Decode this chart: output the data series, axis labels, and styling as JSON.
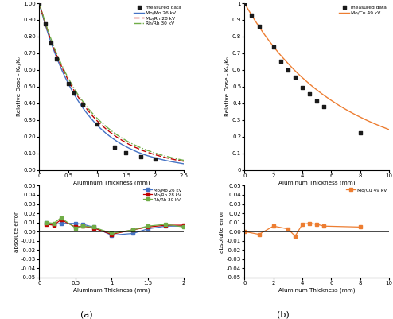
{
  "panel_a_top": {
    "sim_x": [
      0,
      0.05,
      0.1,
      0.15,
      0.2,
      0.25,
      0.3,
      0.35,
      0.4,
      0.45,
      0.5,
      0.55,
      0.6,
      0.65,
      0.7,
      0.75,
      0.8,
      0.85,
      0.9,
      0.95,
      1.0,
      1.05,
      1.1,
      1.15,
      1.2,
      1.25,
      1.3,
      1.35,
      1.4,
      1.45,
      1.5,
      1.55,
      1.6,
      1.65,
      1.7,
      1.75,
      1.8,
      1.85,
      1.9,
      1.95,
      2.0,
      2.1,
      2.2,
      2.3,
      2.4,
      2.5
    ],
    "mo_mo_26": [
      1.0,
      0.935,
      0.875,
      0.82,
      0.768,
      0.72,
      0.674,
      0.632,
      0.592,
      0.555,
      0.52,
      0.487,
      0.456,
      0.427,
      0.4,
      0.375,
      0.351,
      0.329,
      0.308,
      0.288,
      0.27,
      0.253,
      0.237,
      0.222,
      0.208,
      0.195,
      0.183,
      0.171,
      0.16,
      0.15,
      0.141,
      0.132,
      0.124,
      0.116,
      0.108,
      0.102,
      0.095,
      0.089,
      0.084,
      0.079,
      0.074,
      0.065,
      0.057,
      0.05,
      0.044,
      0.038
    ],
    "mo_rh_28": [
      1.0,
      0.94,
      0.883,
      0.83,
      0.779,
      0.733,
      0.689,
      0.648,
      0.61,
      0.574,
      0.54,
      0.508,
      0.478,
      0.45,
      0.424,
      0.399,
      0.376,
      0.354,
      0.333,
      0.314,
      0.296,
      0.279,
      0.263,
      0.248,
      0.234,
      0.221,
      0.208,
      0.196,
      0.185,
      0.175,
      0.165,
      0.155,
      0.147,
      0.138,
      0.131,
      0.123,
      0.116,
      0.11,
      0.104,
      0.098,
      0.093,
      0.083,
      0.074,
      0.066,
      0.059,
      0.053
    ],
    "rh_rh_30": [
      1.0,
      0.943,
      0.888,
      0.836,
      0.788,
      0.742,
      0.699,
      0.659,
      0.621,
      0.585,
      0.552,
      0.521,
      0.491,
      0.463,
      0.437,
      0.413,
      0.39,
      0.368,
      0.348,
      0.329,
      0.311,
      0.294,
      0.278,
      0.263,
      0.249,
      0.235,
      0.222,
      0.21,
      0.199,
      0.188,
      0.178,
      0.168,
      0.159,
      0.151,
      0.143,
      0.135,
      0.128,
      0.121,
      0.115,
      0.109,
      0.103,
      0.092,
      0.083,
      0.074,
      0.066,
      0.059
    ],
    "meas_x": [
      0.0,
      0.1,
      0.2,
      0.3,
      0.5,
      0.6,
      0.75,
      1.0,
      1.3,
      1.5,
      1.75,
      2.0
    ],
    "meas_vals": [
      1.0,
      0.875,
      0.762,
      0.665,
      0.52,
      0.46,
      0.393,
      0.278,
      0.14,
      0.105,
      0.082,
      0.068
    ]
  },
  "panel_b_top": {
    "sim_x": [
      0,
      0.25,
      0.5,
      0.75,
      1.0,
      1.25,
      1.5,
      1.75,
      2.0,
      2.25,
      2.5,
      2.75,
      3.0,
      3.25,
      3.5,
      3.75,
      4.0,
      4.25,
      4.5,
      4.75,
      5.0,
      5.25,
      5.5,
      5.75,
      6.0,
      6.25,
      6.5,
      6.75,
      7.0,
      7.25,
      7.5,
      7.75,
      8.0,
      8.5,
      9.0,
      9.5,
      10.0
    ],
    "mo_cu_49": [
      1.0,
      0.963,
      0.927,
      0.893,
      0.86,
      0.828,
      0.798,
      0.769,
      0.741,
      0.714,
      0.688,
      0.664,
      0.64,
      0.617,
      0.595,
      0.574,
      0.554,
      0.535,
      0.516,
      0.498,
      0.481,
      0.464,
      0.448,
      0.433,
      0.418,
      0.404,
      0.39,
      0.377,
      0.364,
      0.352,
      0.34,
      0.329,
      0.318,
      0.297,
      0.278,
      0.26,
      0.243
    ],
    "meas_x": [
      0.0,
      0.5,
      1.0,
      2.0,
      2.5,
      3.0,
      3.5,
      4.0,
      4.5,
      5.0,
      5.5,
      8.0
    ],
    "meas_vals": [
      1.0,
      0.93,
      0.862,
      0.738,
      0.653,
      0.602,
      0.558,
      0.497,
      0.456,
      0.415,
      0.383,
      0.225
    ]
  },
  "panel_a_bot": {
    "x": [
      0.1,
      0.2,
      0.3,
      0.5,
      0.6,
      0.75,
      1.0,
      1.3,
      1.5,
      1.75,
      2.0
    ],
    "err_mo_mo": [
      0.01,
      0.008,
      0.009,
      0.009,
      0.008,
      0.005,
      -0.004,
      -0.002,
      0.003,
      0.006,
      0.006
    ],
    "err_mo_rh": [
      0.008,
      0.007,
      0.013,
      0.005,
      0.006,
      0.004,
      -0.003,
      0.002,
      0.005,
      0.007,
      0.007
    ],
    "err_rh_rh": [
      0.01,
      0.009,
      0.015,
      0.004,
      0.006,
      0.005,
      -0.002,
      0.002,
      0.006,
      0.008,
      0.005
    ]
  },
  "panel_b_bot": {
    "x": [
      0.0,
      1.0,
      2.0,
      3.0,
      3.5,
      4.0,
      4.5,
      5.0,
      5.5,
      8.0
    ],
    "err_mo_cu": [
      0.0,
      -0.003,
      0.006,
      0.003,
      -0.005,
      0.008,
      0.009,
      0.008,
      0.006,
      0.005
    ]
  },
  "colors": {
    "mo_mo_26": "#4472C4",
    "mo_rh_28": "#C00000",
    "rh_rh_30": "#70AD47",
    "mo_cu_49": "#ED7D31",
    "measured": "#1a1a1a"
  },
  "labels": {
    "mo_mo_26": "Mo/Mo 26 kV",
    "mo_rh_28": "Mo/Rh 28 kV",
    "rh_rh_30": "Rh/Rh 30 kV",
    "mo_cu_49": "Mo/Cu 49 kV",
    "measured": "measured data"
  },
  "ylabel_top": "Relative Dose - Kₖ/K₀",
  "ylabel_bot": "absolute error",
  "ylabel_bot_b": "absolulte error",
  "xlabel": "Aluminum Thickness (mm)",
  "panel_labels": [
    "(a)",
    "(b)"
  ],
  "background_color": "#ffffff"
}
